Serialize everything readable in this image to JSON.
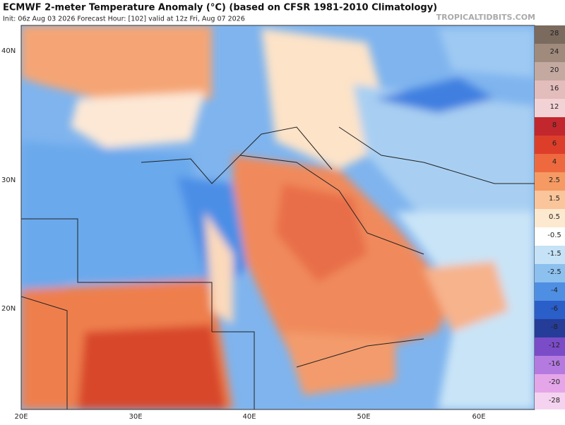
{
  "header": {
    "title": "ECMWF 2-meter Temperature Anomaly (°C) (based on CFSR 1981-2010 Climatology)",
    "subtitle": "Init: 06z Aug 03 2026   Forecast Hour: [102]   valid at 12z Fri, Aug 07 2026",
    "source": "TROPICALTIDBITS.COM"
  },
  "map": {
    "latitude_labels": [
      "40N",
      "30N",
      "20N"
    ],
    "longitude_labels": [
      "20E",
      "30E",
      "40E",
      "50E",
      "60E"
    ]
  },
  "colorbar": {
    "labels": [
      "28",
      "24",
      "20",
      "16",
      "12",
      "8",
      "6",
      "4",
      "2.5",
      "1.5",
      "0.5",
      "-0.5",
      "-1.5",
      "-2.5",
      "-4",
      "-6",
      "-8",
      "-12",
      "-16",
      "-20",
      "-28"
    ]
  }
}
